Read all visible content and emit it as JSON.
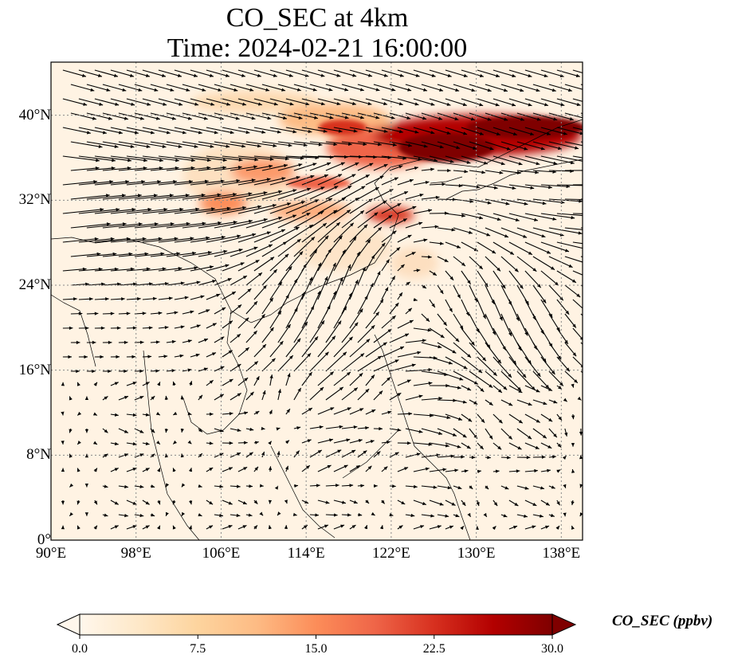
{
  "title": {
    "line1": "CO_SEC at 4km",
    "line2": "Time: 2024-02-21 16:00:00"
  },
  "map": {
    "lon_range": [
      90,
      140
    ],
    "lat_range": [
      0,
      45
    ],
    "x_ticks": [
      {
        "lon": 90,
        "label": "90°E"
      },
      {
        "lon": 98,
        "label": "98°E"
      },
      {
        "lon": 106,
        "label": "106°E"
      },
      {
        "lon": 114,
        "label": "114°E"
      },
      {
        "lon": 122,
        "label": "122°E"
      },
      {
        "lon": 130,
        "label": "130°E"
      },
      {
        "lon": 138,
        "label": "138°E"
      }
    ],
    "y_ticks": [
      {
        "lat": 0,
        "label": "0°"
      },
      {
        "lat": 8,
        "label": "8°N"
      },
      {
        "lat": 16,
        "label": "16°N"
      },
      {
        "lat": 24,
        "label": "24°N"
      },
      {
        "lat": 32,
        "label": "32°N"
      },
      {
        "lat": 40,
        "label": "40°N"
      }
    ],
    "gridlines": true,
    "colormap": "OrRd",
    "high_concentration_band": "northeast (about 35–40°N, 115–140°E)",
    "wind_pattern": "strong westerly jet 24–38°N; anticyclonic circulation centred near 20°N, 124°E"
  },
  "colorbar": {
    "label": "CO_SEC (ppbv)",
    "ticks": [
      "0.0",
      "7.5",
      "15.0",
      "22.5",
      "30.0"
    ],
    "min": 0,
    "max": 30,
    "extend": "both",
    "colors": [
      "#fff7ec",
      "#fee8c8",
      "#fdd49e",
      "#fdbb84",
      "#fc8d59",
      "#ef6548",
      "#d7301f",
      "#b30000",
      "#7f0000"
    ]
  }
}
